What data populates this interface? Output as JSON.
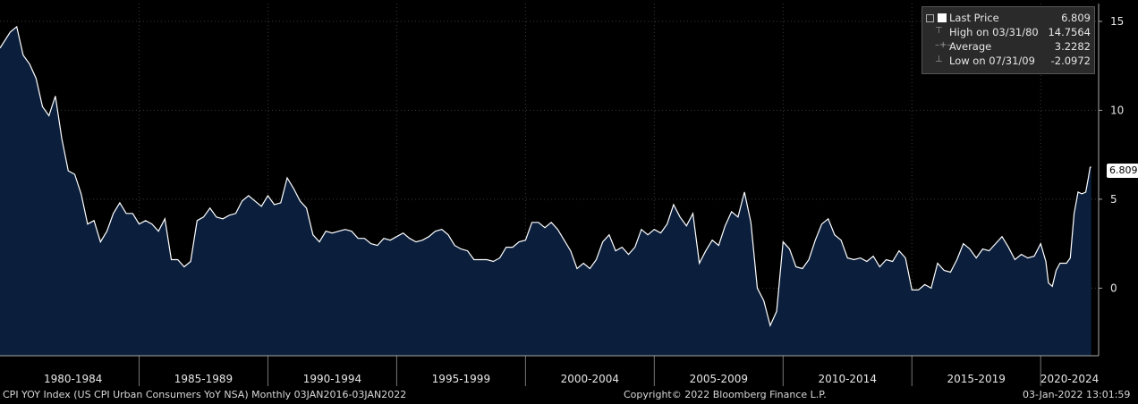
{
  "legend": {
    "last_price_label": "Last Price",
    "last_price_value": "6.809",
    "high_label": "High on 03/31/80",
    "high_value": "14.7564",
    "average_label": "Average",
    "average_value": "3.2282",
    "low_label": "Low on 07/31/09",
    "low_value": "-2.0972"
  },
  "last_value_tag": "6.809",
  "footer": {
    "left": "CPI YOY Index (US CPI Urban Consumers YoY NSA)  Monthly 03JAN2016-03JAN2022",
    "center": "Copyright© 2022 Bloomberg Finance L.P.",
    "right": "03-Jan-2022 13:01:59"
  },
  "colors": {
    "background": "#000000",
    "area_fill": "#0b1f3d",
    "line": "#ffffff",
    "grid": "#3a3a3a"
  },
  "chart_data": {
    "type": "area",
    "x_period_labels": [
      "1980-1984",
      "1985-1989",
      "1990-1994",
      "1995-1999",
      "2000-2004",
      "2005-2009",
      "2010-2014",
      "2015-2019",
      "2020-2024"
    ],
    "y_tick_labels": [
      "0",
      "5",
      "10",
      "15"
    ],
    "ylim": [
      -3.8,
      16
    ],
    "xlim": [
      1979.6,
      2022.25
    ],
    "grid": true,
    "legend_position": "top-right",
    "series": [
      {
        "values": [
          [
            1979.6,
            13.5
          ],
          [
            1980.0,
            14.4
          ],
          [
            1980.25,
            14.7
          ],
          [
            1980.5,
            13.1
          ],
          [
            1980.75,
            12.6
          ],
          [
            1981.0,
            11.8
          ],
          [
            1981.25,
            10.2
          ],
          [
            1981.5,
            9.7
          ],
          [
            1981.75,
            10.8
          ],
          [
            1982.0,
            8.4
          ],
          [
            1982.25,
            6.6
          ],
          [
            1982.5,
            6.4
          ],
          [
            1982.75,
            5.3
          ],
          [
            1983.0,
            3.6
          ],
          [
            1983.25,
            3.8
          ],
          [
            1983.5,
            2.6
          ],
          [
            1983.75,
            3.2
          ],
          [
            1984.0,
            4.2
          ],
          [
            1984.25,
            4.8
          ],
          [
            1984.5,
            4.2
          ],
          [
            1984.75,
            4.2
          ],
          [
            1985.0,
            3.6
          ],
          [
            1985.25,
            3.8
          ],
          [
            1985.5,
            3.6
          ],
          [
            1985.75,
            3.2
          ],
          [
            1986.0,
            3.9
          ],
          [
            1986.25,
            1.6
          ],
          [
            1986.5,
            1.6
          ],
          [
            1986.75,
            1.2
          ],
          [
            1987.0,
            1.5
          ],
          [
            1987.25,
            3.8
          ],
          [
            1987.5,
            4.0
          ],
          [
            1987.75,
            4.5
          ],
          [
            1988.0,
            4.0
          ],
          [
            1988.25,
            3.9
          ],
          [
            1988.5,
            4.1
          ],
          [
            1988.75,
            4.2
          ],
          [
            1989.0,
            4.9
          ],
          [
            1989.25,
            5.2
          ],
          [
            1989.5,
            4.9
          ],
          [
            1989.75,
            4.6
          ],
          [
            1990.0,
            5.2
          ],
          [
            1990.25,
            4.7
          ],
          [
            1990.5,
            4.8
          ],
          [
            1990.75,
            6.2
          ],
          [
            1991.0,
            5.6
          ],
          [
            1991.25,
            4.9
          ],
          [
            1991.5,
            4.5
          ],
          [
            1991.75,
            3.0
          ],
          [
            1992.0,
            2.6
          ],
          [
            1992.25,
            3.2
          ],
          [
            1992.5,
            3.1
          ],
          [
            1992.75,
            3.2
          ],
          [
            1993.0,
            3.3
          ],
          [
            1993.25,
            3.2
          ],
          [
            1993.5,
            2.8
          ],
          [
            1993.75,
            2.8
          ],
          [
            1994.0,
            2.5
          ],
          [
            1994.25,
            2.4
          ],
          [
            1994.5,
            2.8
          ],
          [
            1994.75,
            2.7
          ],
          [
            1995.0,
            2.9
          ],
          [
            1995.25,
            3.1
          ],
          [
            1995.5,
            2.8
          ],
          [
            1995.75,
            2.6
          ],
          [
            1996.0,
            2.7
          ],
          [
            1996.25,
            2.9
          ],
          [
            1996.5,
            3.2
          ],
          [
            1996.75,
            3.3
          ],
          [
            1997.0,
            3.0
          ],
          [
            1997.25,
            2.4
          ],
          [
            1997.5,
            2.2
          ],
          [
            1997.75,
            2.1
          ],
          [
            1998.0,
            1.6
          ],
          [
            1998.25,
            1.6
          ],
          [
            1998.5,
            1.6
          ],
          [
            1998.75,
            1.5
          ],
          [
            1999.0,
            1.7
          ],
          [
            1999.25,
            2.3
          ],
          [
            1999.5,
            2.3
          ],
          [
            1999.75,
            2.6
          ],
          [
            2000.0,
            2.7
          ],
          [
            2000.25,
            3.7
          ],
          [
            2000.5,
            3.7
          ],
          [
            2000.75,
            3.4
          ],
          [
            2001.0,
            3.7
          ],
          [
            2001.25,
            3.3
          ],
          [
            2001.5,
            2.7
          ],
          [
            2001.75,
            2.1
          ],
          [
            2002.0,
            1.1
          ],
          [
            2002.25,
            1.4
          ],
          [
            2002.5,
            1.1
          ],
          [
            2002.75,
            1.6
          ],
          [
            2003.0,
            2.6
          ],
          [
            2003.25,
            3.0
          ],
          [
            2003.5,
            2.1
          ],
          [
            2003.75,
            2.3
          ],
          [
            2004.0,
            1.9
          ],
          [
            2004.25,
            2.3
          ],
          [
            2004.5,
            3.3
          ],
          [
            2004.75,
            3.0
          ],
          [
            2005.0,
            3.3
          ],
          [
            2005.25,
            3.1
          ],
          [
            2005.5,
            3.6
          ],
          [
            2005.75,
            4.7
          ],
          [
            2006.0,
            4.0
          ],
          [
            2006.25,
            3.5
          ],
          [
            2006.5,
            4.2
          ],
          [
            2006.75,
            1.4
          ],
          [
            2007.0,
            2.1
          ],
          [
            2007.25,
            2.7
          ],
          [
            2007.5,
            2.4
          ],
          [
            2007.75,
            3.5
          ],
          [
            2008.0,
            4.3
          ],
          [
            2008.25,
            4.0
          ],
          [
            2008.5,
            5.4
          ],
          [
            2008.75,
            3.7
          ],
          [
            2009.0,
            0.0
          ],
          [
            2009.25,
            -0.7
          ],
          [
            2009.5,
            -2.1
          ],
          [
            2009.75,
            -1.3
          ],
          [
            2010.0,
            2.6
          ],
          [
            2010.25,
            2.2
          ],
          [
            2010.5,
            1.2
          ],
          [
            2010.75,
            1.1
          ],
          [
            2011.0,
            1.6
          ],
          [
            2011.25,
            2.7
          ],
          [
            2011.5,
            3.6
          ],
          [
            2011.75,
            3.9
          ],
          [
            2012.0,
            3.0
          ],
          [
            2012.25,
            2.7
          ],
          [
            2012.5,
            1.7
          ],
          [
            2012.75,
            1.6
          ],
          [
            2013.0,
            1.7
          ],
          [
            2013.25,
            1.5
          ],
          [
            2013.5,
            1.8
          ],
          [
            2013.75,
            1.2
          ],
          [
            2014.0,
            1.6
          ],
          [
            2014.25,
            1.5
          ],
          [
            2014.5,
            2.1
          ],
          [
            2014.75,
            1.7
          ],
          [
            2015.0,
            -0.1
          ],
          [
            2015.25,
            -0.1
          ],
          [
            2015.5,
            0.2
          ],
          [
            2015.75,
            0.0
          ],
          [
            2016.0,
            1.4
          ],
          [
            2016.25,
            1.0
          ],
          [
            2016.5,
            0.9
          ],
          [
            2016.75,
            1.6
          ],
          [
            2017.0,
            2.5
          ],
          [
            2017.25,
            2.2
          ],
          [
            2017.5,
            1.7
          ],
          [
            2017.75,
            2.2
          ],
          [
            2018.0,
            2.1
          ],
          [
            2018.25,
            2.5
          ],
          [
            2018.5,
            2.9
          ],
          [
            2018.75,
            2.3
          ],
          [
            2019.0,
            1.6
          ],
          [
            2019.25,
            1.9
          ],
          [
            2019.5,
            1.7
          ],
          [
            2019.75,
            1.8
          ],
          [
            2020.0,
            2.5
          ],
          [
            2020.2,
            1.5
          ],
          [
            2020.3,
            0.3
          ],
          [
            2020.45,
            0.1
          ],
          [
            2020.6,
            1.0
          ],
          [
            2020.75,
            1.4
          ],
          [
            2021.0,
            1.4
          ],
          [
            2021.15,
            1.7
          ],
          [
            2021.3,
            4.2
          ],
          [
            2021.45,
            5.4
          ],
          [
            2021.6,
            5.3
          ],
          [
            2021.75,
            5.4
          ],
          [
            2021.85,
            6.2
          ],
          [
            2021.92,
            6.8
          ],
          [
            2021.96,
            6.809
          ]
        ]
      }
    ]
  }
}
